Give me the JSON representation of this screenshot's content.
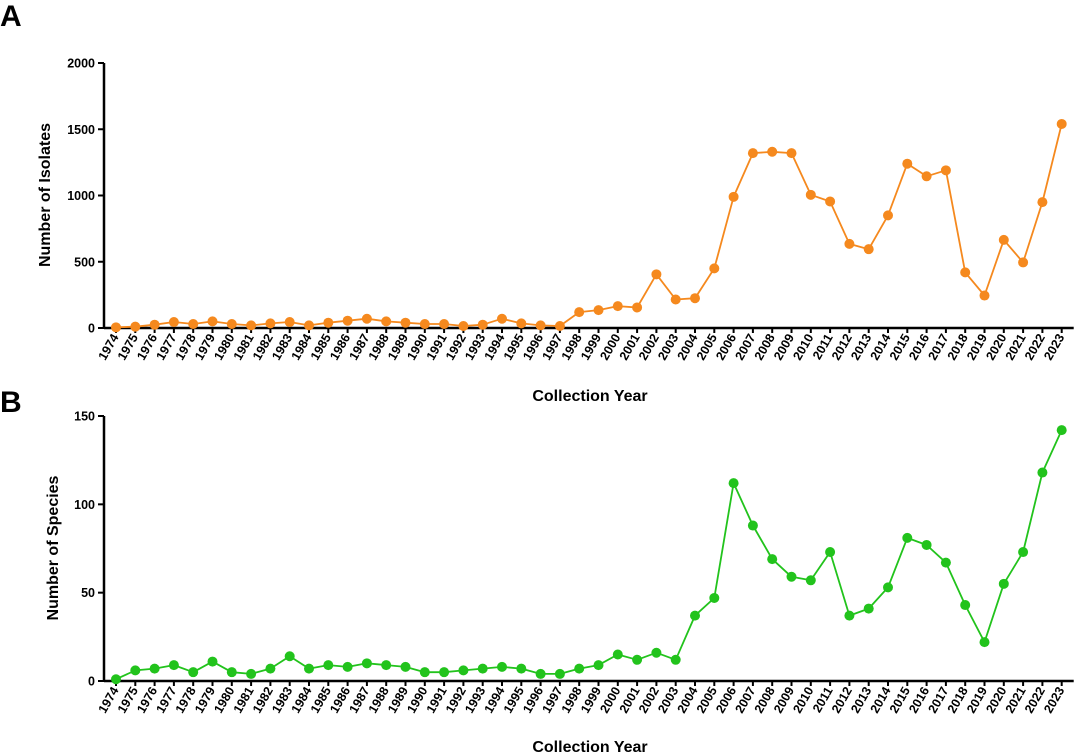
{
  "chart_data": [
    {
      "type": "line",
      "panel_label": "A",
      "xlabel": "Collection Year",
      "ylabel": "Number of Isolates",
      "ylim": [
        0,
        2000
      ],
      "yticks": [
        0,
        500,
        1000,
        1500,
        2000
      ],
      "grid": false,
      "color": "#F5891E",
      "categories": [
        "1974",
        "1975",
        "1976",
        "1977",
        "1978",
        "1979",
        "1980",
        "1981",
        "1982",
        "1983",
        "1984",
        "1985",
        "1986",
        "1987",
        "1988",
        "1989",
        "1990",
        "1991",
        "1992",
        "1993",
        "1994",
        "1995",
        "1996",
        "1997",
        "1998",
        "1999",
        "2000",
        "2001",
        "2002",
        "2003",
        "2004",
        "2005",
        "2006",
        "2007",
        "2008",
        "2009",
        "2010",
        "2011",
        "2012",
        "2013",
        "2014",
        "2015",
        "2016",
        "2017",
        "2018",
        "2019",
        "2020",
        "2021",
        "2022",
        "2023"
      ],
      "values": [
        5,
        10,
        25,
        45,
        30,
        50,
        30,
        20,
        35,
        45,
        20,
        40,
        55,
        70,
        50,
        40,
        30,
        30,
        15,
        25,
        70,
        35,
        20,
        15,
        120,
        135,
        165,
        155,
        405,
        215,
        225,
        450,
        990,
        1320,
        1330,
        1320,
        1005,
        955,
        635,
        595,
        850,
        1240,
        1145,
        1190,
        420,
        245,
        665,
        495,
        950,
        1540
      ]
    },
    {
      "type": "line",
      "panel_label": "B",
      "xlabel": "Collection Year",
      "ylabel": "Number of Species",
      "ylim": [
        0,
        150
      ],
      "yticks": [
        0,
        50,
        100,
        150
      ],
      "grid": false,
      "color": "#22C31C",
      "categories": [
        "1974",
        "1975",
        "1976",
        "1977",
        "1978",
        "1979",
        "1980",
        "1981",
        "1982",
        "1983",
        "1984",
        "1985",
        "1986",
        "1987",
        "1988",
        "1989",
        "1990",
        "1991",
        "1992",
        "1993",
        "1994",
        "1995",
        "1996",
        "1997",
        "1998",
        "1999",
        "2000",
        "2001",
        "2002",
        "2003",
        "2004",
        "2005",
        "2006",
        "2007",
        "2008",
        "2009",
        "2010",
        "2011",
        "2012",
        "2013",
        "2014",
        "2015",
        "2016",
        "2017",
        "2018",
        "2019",
        "2020",
        "2021",
        "2022",
        "2023"
      ],
      "values": [
        1,
        6,
        7,
        9,
        5,
        11,
        5,
        4,
        7,
        14,
        7,
        9,
        8,
        10,
        9,
        8,
        5,
        5,
        6,
        7,
        8,
        7,
        4,
        4,
        7,
        9,
        15,
        12,
        16,
        12,
        37,
        47,
        112,
        88,
        69,
        59,
        57,
        73,
        37,
        41,
        53,
        81,
        77,
        67,
        43,
        22,
        55,
        73,
        118,
        142
      ]
    }
  ]
}
